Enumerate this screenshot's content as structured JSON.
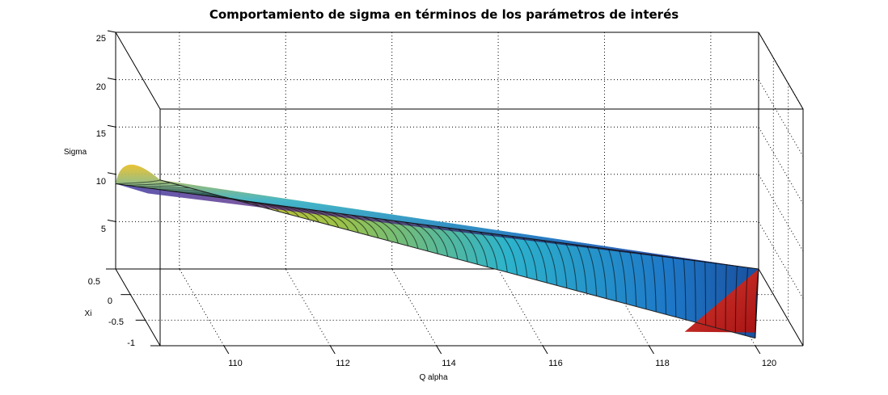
{
  "chart_data": {
    "type": "surface",
    "title": "Comportamiento de sigma en términos de los parámetros de interés",
    "xlabel": "Q alpha",
    "ylabel": "Xi",
    "zlabel": "Sigma",
    "x_ticks": [
      "110",
      "112",
      "114",
      "116",
      "118",
      "120"
    ],
    "y_ticks": [
      "0.5",
      "0",
      "-0.5",
      "-1"
    ],
    "z_ticks": [
      "25",
      "20",
      "15",
      "10",
      "5"
    ],
    "xlim": [
      108.8,
      120.9
    ],
    "ylim": [
      -1,
      0.5
    ],
    "zlim": [
      0,
      25
    ],
    "grid": true,
    "colormap": "parula",
    "surface_points": [
      {
        "q_alpha": 108.8,
        "xi": -1.0,
        "sigma": 17.5
      },
      {
        "q_alpha": 108.8,
        "xi": 0.5,
        "sigma": 9.0
      },
      {
        "q_alpha": 120.0,
        "xi": -1.0,
        "sigma": 0.8
      },
      {
        "q_alpha": 120.9,
        "xi": 0.5,
        "sigma": 0.0
      }
    ]
  }
}
